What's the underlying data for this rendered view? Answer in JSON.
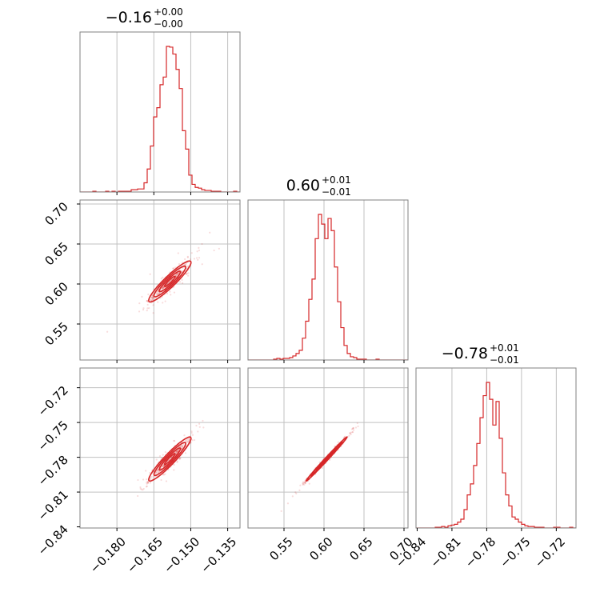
{
  "chart_data": {
    "type": "corner",
    "color": "#d62728",
    "parameters": [
      {
        "index": 0,
        "title": "−0.16",
        "title_err_plus": "+0.00",
        "title_err_minus": "−0.00",
        "range": [
          -0.195,
          -0.13
        ],
        "ticks": [
          {
            "value": -0.18,
            "label": "−0.180"
          },
          {
            "value": -0.165,
            "label": "−0.165"
          },
          {
            "value": -0.15,
            "label": "−0.150"
          },
          {
            "value": -0.135,
            "label": "−0.135"
          }
        ],
        "grid_values": [
          -0.18,
          -0.165,
          -0.15,
          -0.135
        ]
      },
      {
        "index": 1,
        "title": "0.60",
        "title_err_plus": "+0.01",
        "title_err_minus": "−0.01",
        "range": [
          0.505,
          0.705
        ],
        "ticks": [
          {
            "value": 0.55,
            "label": "0.55"
          },
          {
            "value": 0.6,
            "label": "0.60"
          },
          {
            "value": 0.65,
            "label": "0.65"
          },
          {
            "value": 0.7,
            "label": "0.70"
          }
        ],
        "grid_values": [
          0.55,
          0.6,
          0.65,
          0.7
        ]
      },
      {
        "index": 2,
        "title": "−0.78",
        "title_err_plus": "+0.01",
        "title_err_minus": "−0.01",
        "range": [
          -0.841,
          -0.703
        ],
        "ticks": [
          {
            "value": -0.84,
            "label": "−0.84"
          },
          {
            "value": -0.81,
            "label": "−0.81"
          },
          {
            "value": -0.78,
            "label": "−0.78"
          },
          {
            "value": -0.75,
            "label": "−0.75"
          },
          {
            "value": -0.72,
            "label": "−0.72"
          }
        ],
        "grid_values": [
          -0.81,
          -0.78,
          -0.75,
          -0.72
        ]
      }
    ],
    "histograms": [
      {
        "param": 0,
        "bin_start": -0.195,
        "bin_width": 0.0013,
        "counts": [
          0,
          0,
          0,
          0,
          1,
          0,
          0,
          0,
          1,
          0,
          1,
          0,
          1,
          1,
          1,
          1,
          3,
          3,
          4,
          4,
          12,
          30,
          60,
          98,
          110,
          140,
          150,
          190,
          189,
          180,
          160,
          135,
          80,
          56,
          22,
          10,
          6,
          5,
          3,
          2,
          2,
          1,
          1,
          1,
          0,
          0,
          0,
          0,
          1,
          0
        ]
      },
      {
        "param": 1,
        "bin_start": 0.505,
        "bin_width": 0.004,
        "counts": [
          0,
          0,
          0,
          0,
          0,
          0,
          0,
          0,
          1,
          2,
          1,
          2,
          2,
          3,
          5,
          8,
          12,
          27,
          48,
          75,
          100,
          150,
          180,
          168,
          150,
          175,
          160,
          115,
          72,
          40,
          18,
          8,
          4,
          3,
          1,
          1,
          1,
          0,
          0,
          0,
          1,
          0,
          0,
          0,
          0,
          0,
          0,
          0,
          0,
          0
        ]
      },
      {
        "param": 2,
        "bin_start": -0.841,
        "bin_width": 0.00276,
        "counts": [
          0,
          0,
          0,
          0,
          0,
          0,
          1,
          1,
          2,
          1,
          3,
          4,
          5,
          8,
          12,
          25,
          45,
          60,
          85,
          115,
          150,
          180,
          198,
          175,
          140,
          172,
          122,
          75,
          45,
          30,
          15,
          12,
          8,
          5,
          3,
          2,
          2,
          1,
          1,
          1,
          0,
          0,
          0,
          1,
          1,
          0,
          0,
          0,
          1,
          0
        ]
      }
    ],
    "pairs": [
      {
        "x_param": 0,
        "y_param": 1,
        "mean": [
          -0.1585,
          0.6032
        ],
        "sigma": [
          0.0043,
          0.0128
        ],
        "correlation": 0.93,
        "n_samples": 420,
        "contour_levels": [
          0.5,
          1.0,
          1.5,
          2.0
        ]
      },
      {
        "x_param": 0,
        "y_param": 2,
        "mean": [
          -0.1585,
          -0.7815
        ],
        "sigma": [
          0.0043,
          0.0095
        ],
        "correlation": 0.94,
        "n_samples": 420,
        "contour_levels": [
          0.5,
          1.0,
          1.5,
          2.0
        ]
      },
      {
        "x_param": 1,
        "y_param": 2,
        "mean": [
          0.6032,
          -0.7815
        ],
        "sigma": [
          0.0128,
          0.0095
        ],
        "correlation": 0.995,
        "n_samples": 420,
        "contour_levels": [
          0.5,
          1.0,
          1.5,
          2.0
        ]
      }
    ],
    "grid": true
  }
}
